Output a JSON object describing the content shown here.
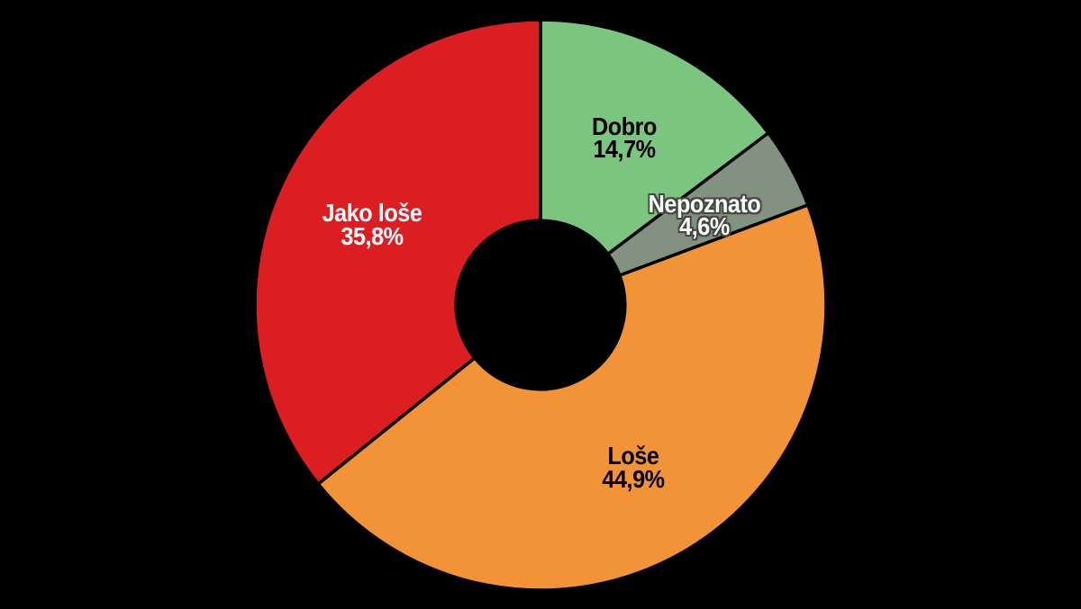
{
  "background_color": "#000000",
  "chart_data": {
    "type": "pie",
    "subtype": "donut",
    "title": "",
    "start_angle_deg": 0,
    "direction": "clockwise",
    "donut_hole_ratio": 0.296,
    "separator_color": "#000000",
    "separator_width": 3.5,
    "legend": null,
    "categories": [
      "Dobro",
      "Nepoznato",
      "Loše",
      "Jako loše"
    ],
    "values": [
      14.7,
      4.6,
      44.9,
      35.8
    ],
    "segments": [
      {
        "label": "Dobro",
        "value": 14.7,
        "pct_label": "14,7%",
        "color": "#7cc581",
        "label_color": "#000000",
        "label_outline": false
      },
      {
        "label": "Nepoznato",
        "value": 4.6,
        "pct_label": "4,6%",
        "color": "#839181",
        "label_color": "#ffffff",
        "label_outline": true
      },
      {
        "label": "Loše",
        "value": 44.9,
        "pct_label": "44,9%",
        "color": "#f29338",
        "label_color": "#000000",
        "label_outline": false
      },
      {
        "label": "Jako loše",
        "value": 35.8,
        "pct_label": "35,8%",
        "color": "#db1e22",
        "label_color": "#ffffff",
        "label_outline": false
      }
    ]
  }
}
